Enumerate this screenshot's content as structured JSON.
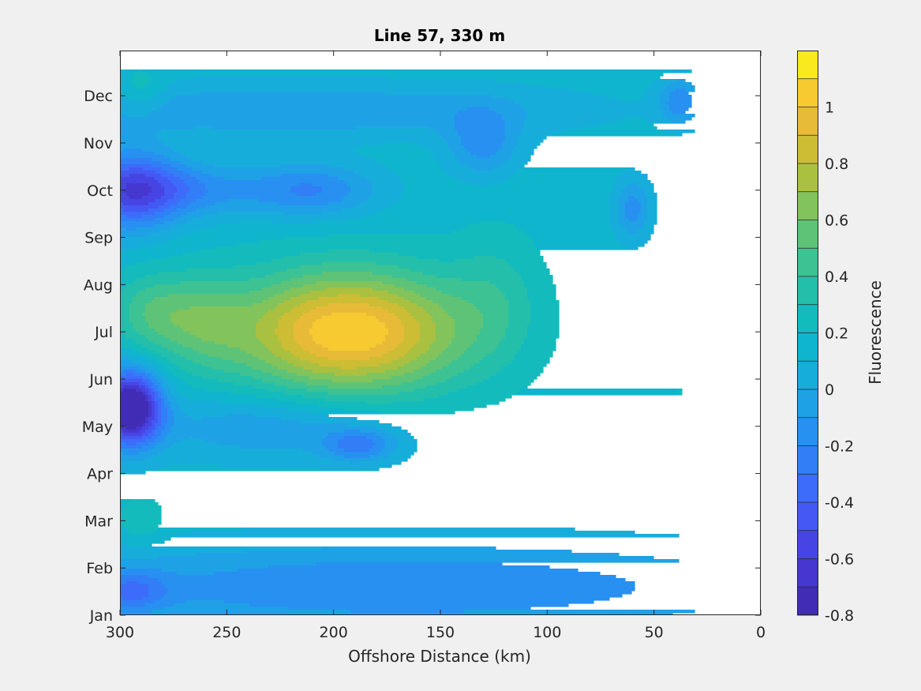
{
  "chart_data": {
    "type": "heatmap",
    "title": "Line 57, 330 m",
    "xlabel": "Offshore Distance (km)",
    "ylabel": "",
    "x_axis": {
      "reversed": true,
      "xlim": [
        300,
        0
      ],
      "ticks": [
        300,
        250,
        200,
        150,
        100,
        50,
        0
      ]
    },
    "y_axis": {
      "ticks": [
        "Jan",
        "Feb",
        "Mar",
        "Apr",
        "May",
        "Jun",
        "Jul",
        "Aug",
        "Sep",
        "Oct",
        "Nov",
        "Dec"
      ]
    },
    "data_x_range": [
      300,
      30
    ],
    "colorbar": {
      "label": "Fluorescence",
      "range": [
        -0.8,
        1.2
      ],
      "level_step": 0.1,
      "ticks": [
        "1",
        "0.8",
        "0.6",
        "0.4",
        "0.2",
        "0",
        "-0.2",
        "-0.4",
        "-0.6",
        "-0.8"
      ],
      "colormap": "parula"
    },
    "background_level": 0.15,
    "features": [
      {
        "x": 193,
        "month": 7.0,
        "value": 1.1,
        "sx": 38,
        "sy": 0.9
      },
      {
        "x": 285,
        "month": 7.4,
        "value": 0.45,
        "sx": 14,
        "sy": 0.6
      },
      {
        "x": 260,
        "month": 7.2,
        "value": 0.4,
        "sx": 14,
        "sy": 0.7
      },
      {
        "x": 124,
        "month": 7.8,
        "value": 0.3,
        "sx": 15,
        "sy": 1.0
      },
      {
        "x": 38,
        "month": 5.7,
        "value": 0.2,
        "sx": 15,
        "sy": 1.3
      },
      {
        "x": 295,
        "month": 5.4,
        "value": -0.95,
        "sx": 10,
        "sy": 0.55
      },
      {
        "x": 295,
        "month": 10.0,
        "value": -0.45,
        "sx": 16,
        "sy": 0.6
      },
      {
        "x": 270,
        "month": 10.0,
        "value": -0.15,
        "sx": 25,
        "sy": 0.4
      },
      {
        "x": 210,
        "month": 10.0,
        "value": -0.2,
        "sx": 22,
        "sy": 0.4
      },
      {
        "x": 188,
        "month": 4.6,
        "value": -0.2,
        "sx": 12,
        "sy": 0.25
      },
      {
        "x": 130,
        "month": 11.0,
        "value": -0.15,
        "sx": 12,
        "sy": 0.5
      },
      {
        "x": 60,
        "month": 9.6,
        "value": -0.15,
        "sx": 6,
        "sy": 0.45
      },
      {
        "x": 38,
        "month": 11.9,
        "value": -0.15,
        "sx": 7,
        "sy": 0.35
      },
      {
        "x": 165,
        "month": 1.6,
        "value": -0.2,
        "sx": 130,
        "sy": 0.65
      },
      {
        "x": 295,
        "month": 1.5,
        "value": -0.15,
        "sx": 12,
        "sy": 0.3
      },
      {
        "x": 220,
        "month": 11.7,
        "value": -0.1,
        "sx": 90,
        "sy": 0.4
      },
      {
        "x": 230,
        "month": 5.0,
        "value": -0.1,
        "sx": 40,
        "sy": 0.5
      },
      {
        "x": 290,
        "month": 12.1,
        "value": 0.3,
        "sx": 8,
        "sy": 0.35
      },
      {
        "x": 290,
        "month": 3.0,
        "value": 0.3,
        "sx": 8,
        "sy": 0.35
      }
    ]
  }
}
